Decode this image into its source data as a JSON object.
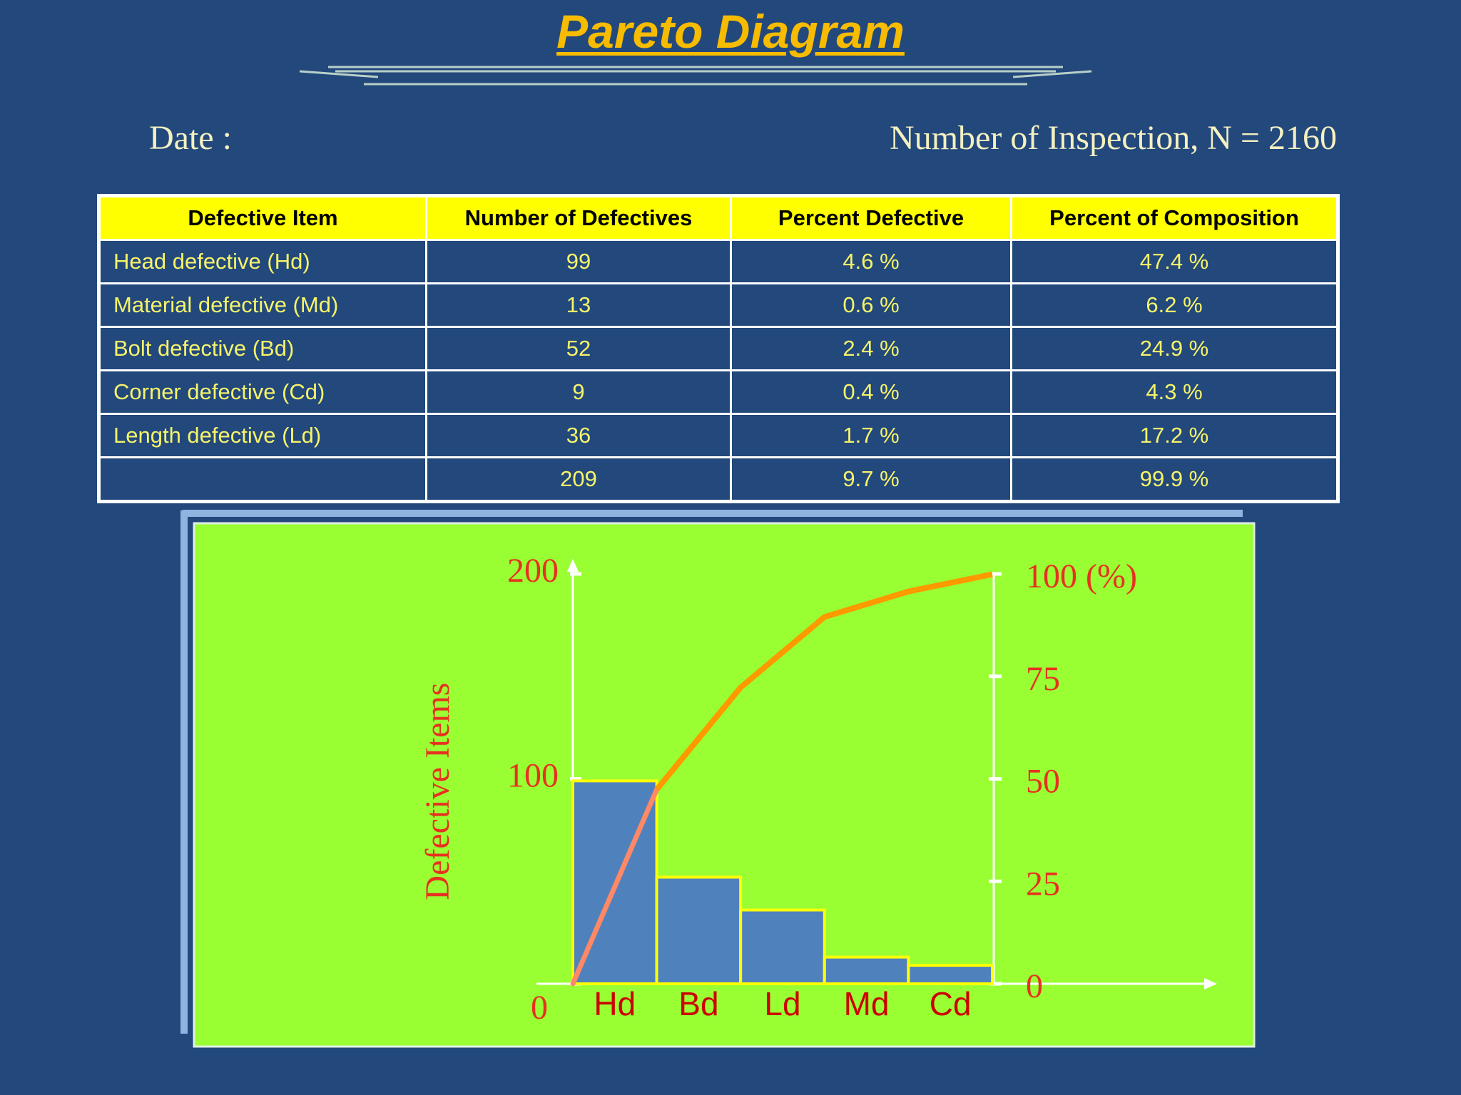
{
  "header": {
    "title": "Pareto Diagram",
    "date": "Date :",
    "inspection": "Number of Inspection, N = 2160"
  },
  "table": {
    "columns": [
      "Defective Item",
      "Number of Defectives",
      "Percent Defective",
      "Percent of Composition"
    ],
    "rows": [
      [
        "Head defective (Hd)",
        "99",
        "4.6 %",
        "47.4 %"
      ],
      [
        "Material defective (Md)",
        "13",
        "0.6 %",
        "6.2 %"
      ],
      [
        "Bolt defective (Bd)",
        "52",
        "2.4 %",
        "24.9 %"
      ],
      [
        "Corner defective (Cd)",
        "9",
        "0.4 %",
        "4.3 %"
      ],
      [
        "Length defective (Ld)",
        "36",
        "1.7 %",
        "17.2 %"
      ]
    ],
    "totals": [
      "209",
      "9.7 %",
      "99.9 %"
    ]
  },
  "chart_data": {
    "type": "bar",
    "ylabel": "Defective Items",
    "categories": [
      "Hd",
      "Bd",
      "Ld",
      "Md",
      "Cd"
    ],
    "series": [
      {
        "type": "bar",
        "values": [
          99,
          52,
          36,
          13,
          9
        ],
        "color": "#4f81bd"
      },
      {
        "type": "line",
        "axis": "y2",
        "values": [
          47.4,
          72.3,
          89.5,
          95.7,
          99.9
        ],
        "color": "#ff9900"
      }
    ],
    "ylim": [
      0,
      200
    ],
    "yticks": [
      0,
      100,
      200
    ],
    "y2lim": [
      0,
      100
    ],
    "y2ticks": [
      0,
      25,
      50,
      75,
      {
        "value": 100,
        "label": "100  (%)"
      }
    ]
  }
}
